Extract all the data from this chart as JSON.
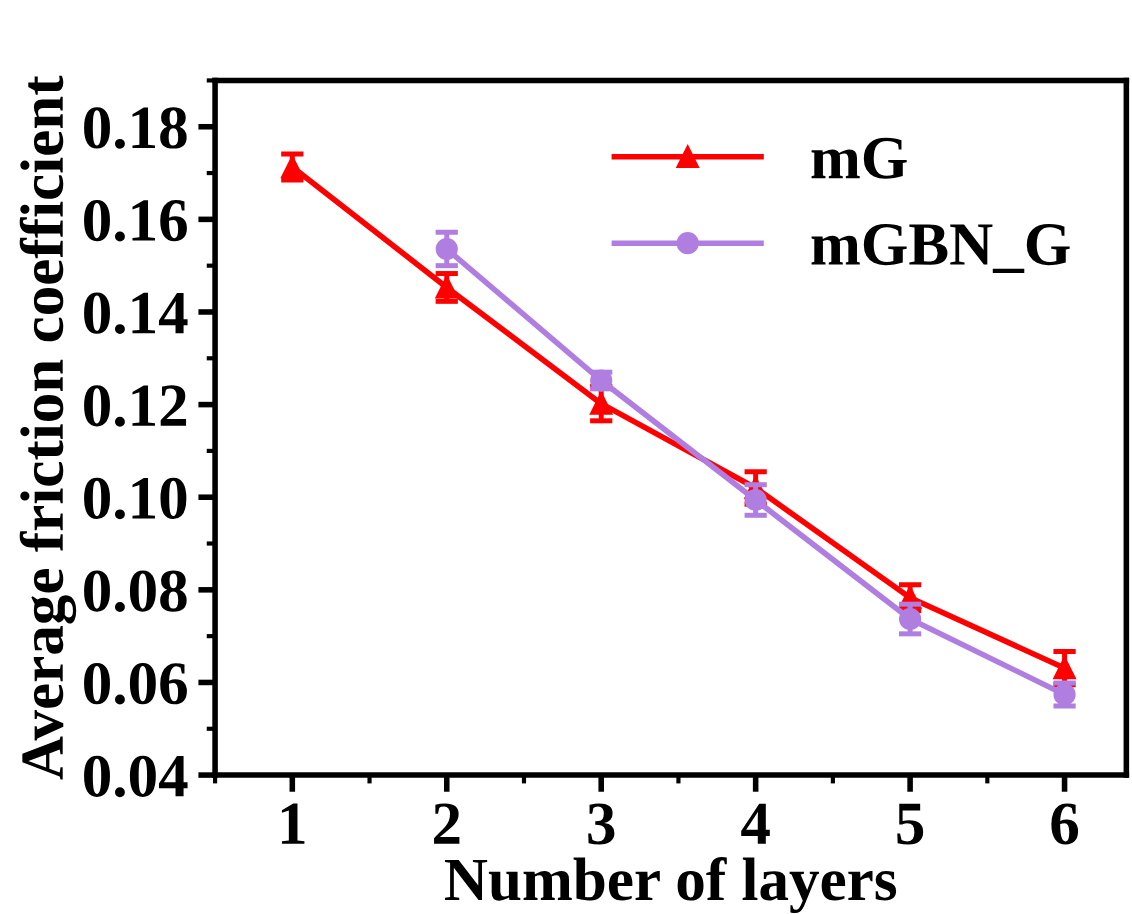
{
  "chart_data": {
    "type": "line",
    "xlabel": "Number of layers",
    "ylabel": "Average friction coefficient",
    "xlim": [
      0.5,
      6.4
    ],
    "xticks": [
      1,
      2,
      3,
      4,
      5,
      6
    ],
    "ylim": [
      0.04,
      0.19
    ],
    "yticks": [
      {
        "value": 0.04,
        "label": "0.04"
      },
      {
        "value": 0.06,
        "label": "0.06"
      },
      {
        "value": 0.08,
        "label": "0.08"
      },
      {
        "value": 0.1,
        "label": "0.10"
      },
      {
        "value": 0.12,
        "label": "0.12"
      },
      {
        "value": 0.14,
        "label": "0.14"
      },
      {
        "value": 0.16,
        "label": "0.16"
      },
      {
        "value": 0.18,
        "label": "0.18"
      }
    ],
    "grid": false,
    "legend": "top right",
    "series": [
      {
        "name": "mG",
        "color": "#ff0000",
        "marker": "triangle",
        "x": [
          1,
          2,
          3,
          4,
          5,
          6
        ],
        "values": [
          0.1713,
          0.1453,
          0.1202,
          0.102,
          0.0783,
          0.0631
        ],
        "errors": [
          0.0028,
          0.003,
          0.0037,
          0.0035,
          0.0028,
          0.0036
        ]
      },
      {
        "name": "mGBN_G",
        "color": "#b07ee0",
        "marker": "circle",
        "x": [
          2,
          3,
          4,
          5,
          6
        ],
        "values": [
          0.1536,
          0.1252,
          0.0994,
          0.0737,
          0.0574
        ],
        "errors": [
          0.0036,
          0.0018,
          0.0033,
          0.0032,
          0.0025
        ]
      }
    ]
  }
}
